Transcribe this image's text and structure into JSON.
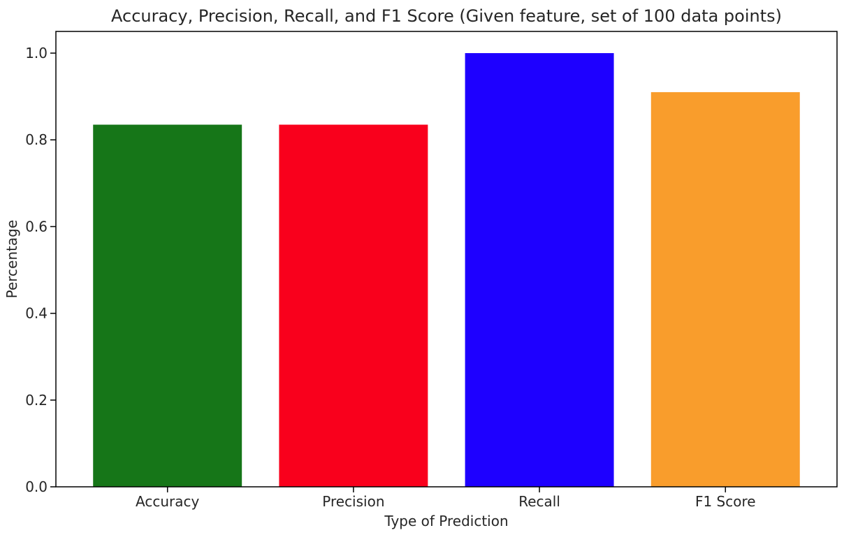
{
  "chart_data": {
    "type": "bar",
    "title": "Accuracy, Precision, Recall, and F1 Score (Given feature, set of 100 data points)",
    "xlabel": "Type of Prediction",
    "ylabel": "Percentage",
    "categories": [
      "Accuracy",
      "Precision",
      "Recall",
      "F1 Score"
    ],
    "values": [
      0.835,
      0.835,
      1.0,
      0.91
    ],
    "colors": [
      "#167618",
      "#f9001c",
      "#1e00ff",
      "#f99d2c"
    ],
    "ylim": [
      0,
      1.05
    ],
    "yticks": [
      0.0,
      0.2,
      0.4,
      0.6,
      0.8,
      1.0
    ],
    "ytick_labels": [
      "0.0",
      "0.2",
      "0.4",
      "0.6",
      "0.8",
      "1.0"
    ],
    "grid": false,
    "legend": "none"
  }
}
